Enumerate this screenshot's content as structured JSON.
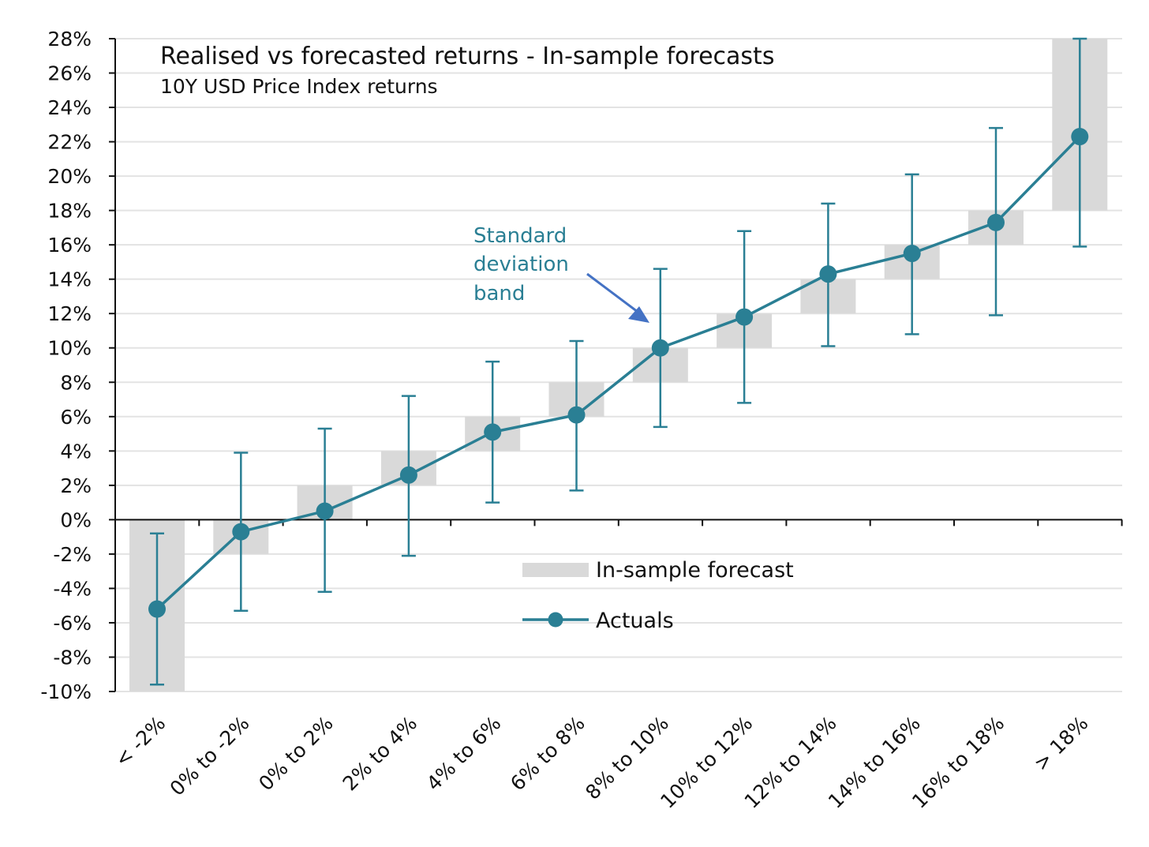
{
  "chart_data": {
    "type": "line",
    "title": "Realised vs forecasted returns - In-sample forecasts",
    "subtitle": "10Y USD Price Index returns",
    "xlabel": "",
    "ylabel": "",
    "ylim": [
      -10,
      28
    ],
    "ytick_step": 2,
    "ytick_labels": [
      "-10%",
      "-8%",
      "-6%",
      "-4%",
      "-2%",
      "0%",
      "2%",
      "4%",
      "6%",
      "8%",
      "10%",
      "12%",
      "14%",
      "16%",
      "18%",
      "20%",
      "22%",
      "24%",
      "26%",
      "28%"
    ],
    "categories": [
      "< -2%",
      "0% to -2%",
      "0% to 2%",
      "2% to 4%",
      "4% to 6%",
      "6% to 8%",
      "8% to 10%",
      "10% to 12%",
      "12% to 14%",
      "14% to 16%",
      "16% to 18%",
      "> 18%"
    ],
    "grid": true,
    "legend_position": "center",
    "series": [
      {
        "name": "In-sample forecast",
        "kind": "floating-band",
        "color": "#d9d9d9",
        "low": [
          -10,
          -2,
          0,
          2,
          4,
          6,
          8,
          10,
          12,
          14,
          16,
          18
        ],
        "high": [
          0,
          0,
          2,
          4,
          6,
          8,
          10,
          12,
          14,
          16,
          18,
          28
        ]
      },
      {
        "name": "Actuals",
        "kind": "line-markers",
        "color": "#2a7f94",
        "values": [
          -5.2,
          -0.7,
          0.5,
          2.6,
          5.1,
          6.1,
          10.0,
          11.8,
          14.3,
          15.5,
          17.3,
          22.3
        ],
        "err_low": [
          -9.6,
          -5.3,
          -4.2,
          -2.1,
          1.0,
          1.7,
          5.4,
          6.8,
          10.1,
          10.8,
          11.9,
          15.9
        ],
        "err_high": [
          -0.8,
          3.9,
          5.3,
          7.2,
          9.2,
          10.4,
          14.6,
          16.8,
          18.4,
          20.1,
          22.8,
          28.0
        ]
      }
    ],
    "annotation": {
      "lines": [
        "Standard",
        "deviation",
        "band"
      ],
      "arrow_to_category": "8% to 10%",
      "color": "#4472c4"
    },
    "legend": {
      "band_label": "In-sample forecast",
      "line_label": "Actuals"
    }
  }
}
